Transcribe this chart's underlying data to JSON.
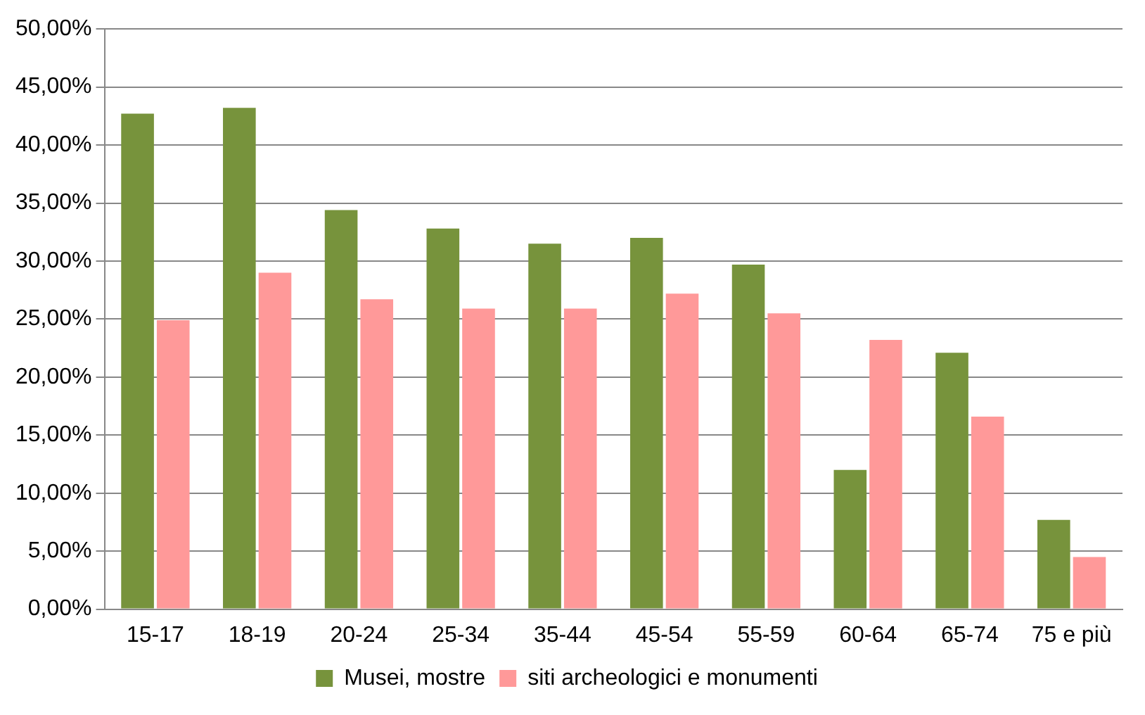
{
  "chart_data": {
    "type": "bar",
    "categories": [
      "15-17",
      "18-19",
      "20-24",
      "25-34",
      "35-44",
      "45-54",
      "55-59",
      "60-64",
      "65-74",
      "75 e più"
    ],
    "series": [
      {
        "name": "Musei, mostre",
        "color": "#77933c",
        "values": [
          42.7,
          43.2,
          34.4,
          32.8,
          31.5,
          32.0,
          29.7,
          12.0,
          22.1,
          7.7
        ]
      },
      {
        "name": "siti archeologici e monumenti",
        "color": "#ff9999",
        "values": [
          24.9,
          29.0,
          26.7,
          25.9,
          25.9,
          27.2,
          25.5,
          23.2,
          16.6,
          4.5
        ]
      }
    ],
    "ylim": [
      0,
      50
    ],
    "yticks": [
      {
        "value": 0,
        "label": "0,00%"
      },
      {
        "value": 5,
        "label": "5,00%"
      },
      {
        "value": 10,
        "label": "10,00%"
      },
      {
        "value": 15,
        "label": "15,00%"
      },
      {
        "value": 20,
        "label": "20,00%"
      },
      {
        "value": 25,
        "label": "25,00%"
      },
      {
        "value": 30,
        "label": "30,00%"
      },
      {
        "value": 35,
        "label": "35,00%"
      },
      {
        "value": 40,
        "label": "40,00%"
      },
      {
        "value": 45,
        "label": "45,00%"
      },
      {
        "value": 50,
        "label": "50,00%"
      }
    ],
    "grid": "y",
    "legend": "bottom"
  }
}
